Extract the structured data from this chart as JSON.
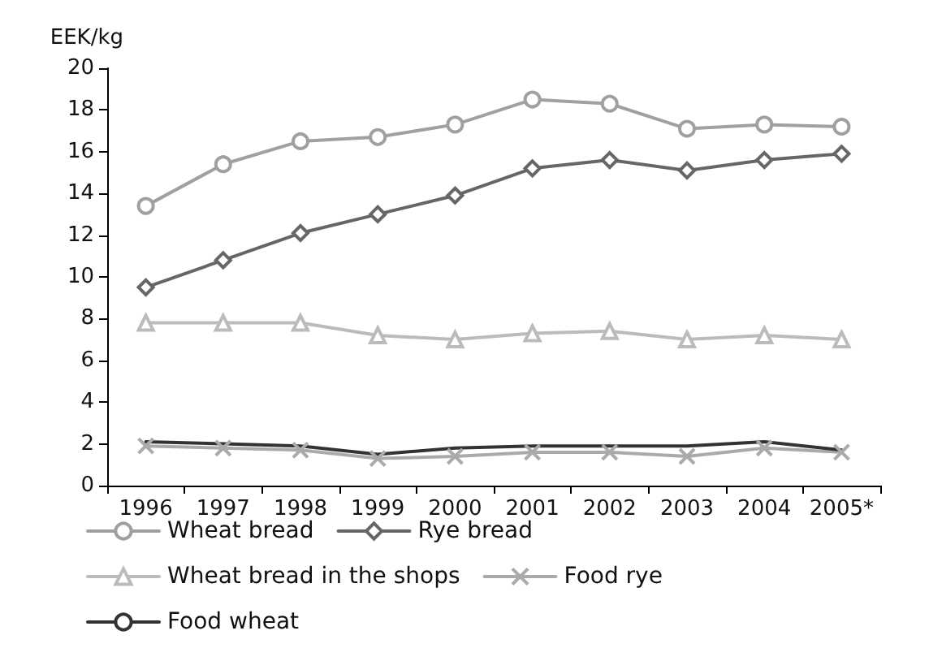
{
  "chart_data": {
    "type": "line",
    "ylabel": "EEK/kg",
    "categories": [
      "1996",
      "1997",
      "1998",
      "1999",
      "2000",
      "2001",
      "2002",
      "2003",
      "2004",
      "2005*"
    ],
    "series": [
      {
        "name": "Wheat bread",
        "color": "#a0a0a0",
        "marker": "circle",
        "values": [
          13.4,
          15.4,
          16.5,
          16.7,
          17.3,
          18.5,
          18.3,
          17.1,
          17.3,
          17.2
        ]
      },
      {
        "name": "Rye bread",
        "color": "#666666",
        "marker": "diamond",
        "values": [
          9.5,
          10.8,
          12.1,
          13.0,
          13.9,
          15.2,
          15.6,
          15.1,
          15.6,
          15.9
        ]
      },
      {
        "name": "Wheat bread in the shops",
        "color": "#bbbbbb",
        "marker": "triangle",
        "values": [
          7.8,
          7.8,
          7.8,
          7.2,
          7.0,
          7.3,
          7.4,
          7.0,
          7.2,
          7.0
        ]
      },
      {
        "name": "Food rye",
        "color": "#aaaaaa",
        "marker": "cross",
        "values": [
          1.9,
          1.8,
          1.7,
          1.3,
          1.4,
          1.6,
          1.6,
          1.4,
          1.8,
          1.6
        ]
      },
      {
        "name": "Food wheat",
        "color": "#333333",
        "marker": "none",
        "values": [
          2.1,
          2.0,
          1.9,
          1.5,
          1.8,
          1.9,
          1.9,
          1.9,
          2.1,
          1.7
        ]
      }
    ],
    "ylim": [
      0,
      20
    ],
    "yticks": [
      0,
      2,
      4,
      6,
      8,
      10,
      12,
      14,
      16,
      18,
      20
    ],
    "grid": false,
    "legend": "bottom",
    "line_style": "solid"
  }
}
